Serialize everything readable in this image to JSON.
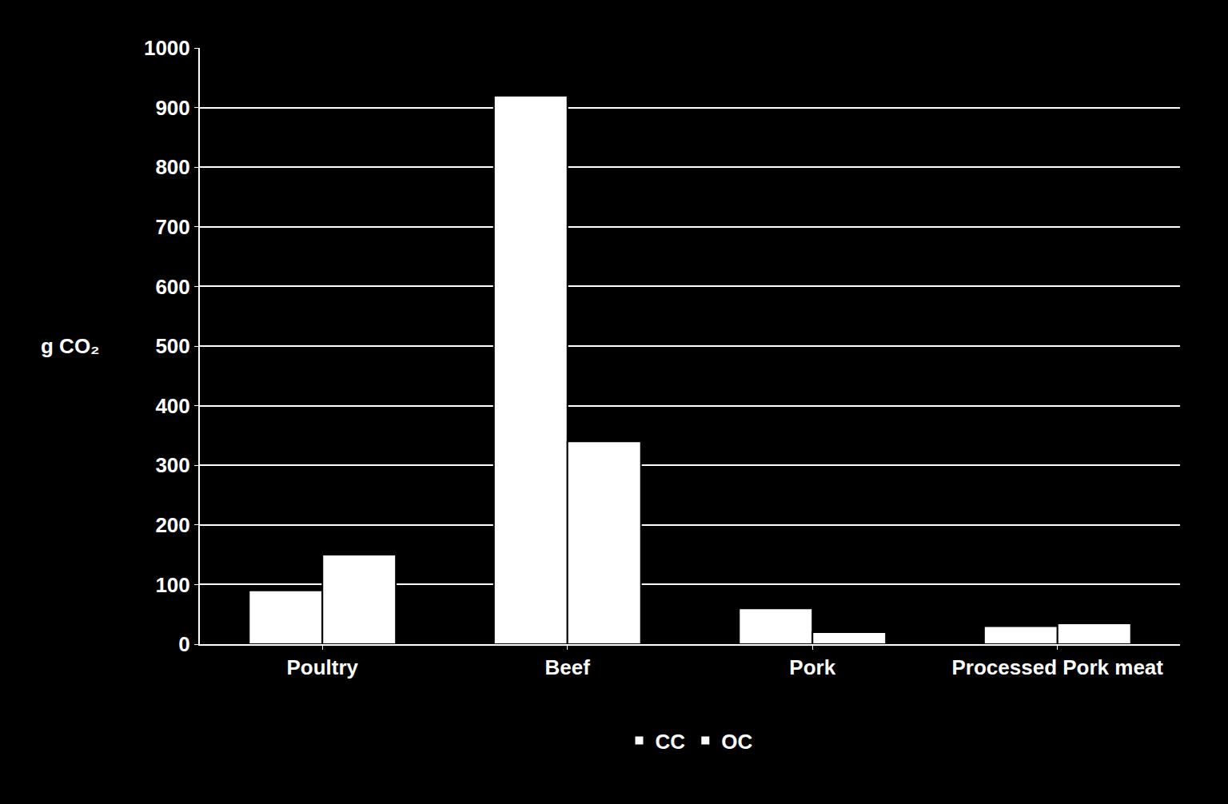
{
  "chart_data": {
    "type": "bar",
    "y_label": "g CO₂",
    "categories": [
      "Poultry",
      "Beef",
      "Pork",
      "Processed Pork meat"
    ],
    "series": [
      {
        "name": "CC",
        "color": "#ffffff",
        "values": [
          90,
          920,
          60,
          30
        ]
      },
      {
        "name": "OC",
        "color": "#ffffff",
        "values": [
          150,
          340,
          20,
          35
        ]
      }
    ],
    "ylim": [
      0,
      1000
    ],
    "yticks": [
      0,
      100,
      200,
      300,
      400,
      500,
      600,
      700,
      800,
      900,
      1000
    ],
    "grid": true,
    "legend": "bottom"
  }
}
